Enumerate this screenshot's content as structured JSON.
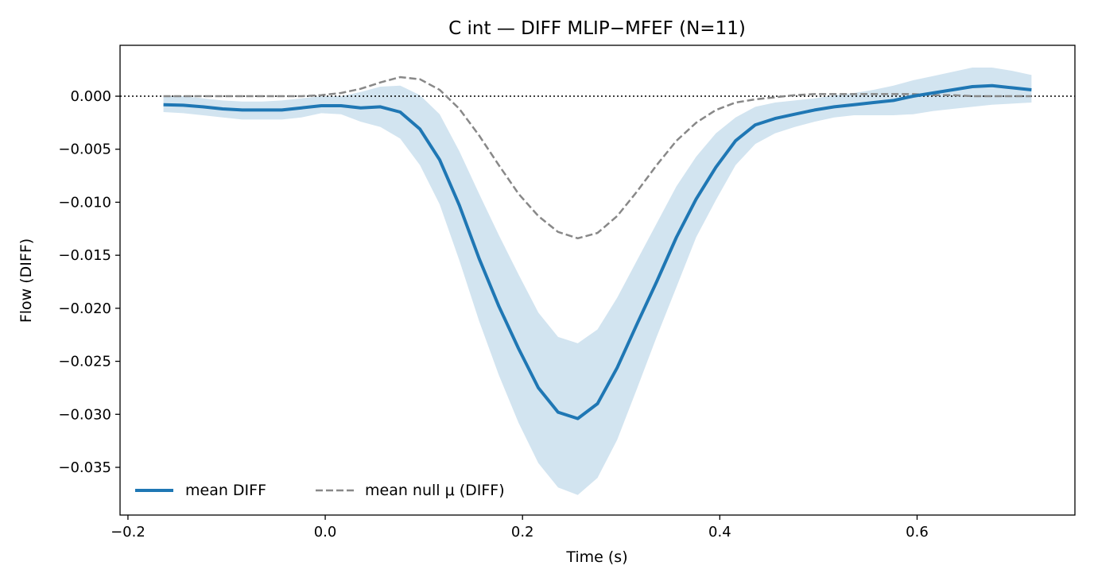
{
  "chart_data": {
    "type": "line",
    "title": "C int — DIFF MLIP−MFEF (N=11)",
    "xlabel": "Time (s)",
    "ylabel": "Flow (DIFF)",
    "xlim": [
      -0.208,
      0.76
    ],
    "ylim": [
      -0.0395,
      0.0048
    ],
    "xticks": [
      -0.2,
      0.0,
      0.2,
      0.4,
      0.6
    ],
    "xtick_labels": [
      "−0.2",
      "0.0",
      "0.2",
      "0.4",
      "0.6"
    ],
    "yticks": [
      0.0,
      -0.005,
      -0.01,
      -0.015,
      -0.02,
      -0.025,
      -0.03,
      -0.035
    ],
    "ytick_labels": [
      "0.000",
      "−0.005",
      "−0.010",
      "−0.015",
      "−0.020",
      "−0.025",
      "−0.030",
      "−0.035"
    ],
    "grid": false,
    "legend_position": "lower-left",
    "reference_line": {
      "y": 0,
      "style": "dotted",
      "color": "#000000"
    },
    "colors": {
      "mean": "#1f77b4",
      "band": "#1f77b4",
      "null": "#888888"
    },
    "x": [
      -0.164,
      -0.144,
      -0.124,
      -0.104,
      -0.084,
      -0.064,
      -0.044,
      -0.024,
      -0.004,
      0.016,
      0.036,
      0.056,
      0.076,
      0.096,
      0.116,
      0.136,
      0.156,
      0.176,
      0.196,
      0.216,
      0.236,
      0.256,
      0.276,
      0.296,
      0.316,
      0.336,
      0.356,
      0.376,
      0.396,
      0.416,
      0.436,
      0.456,
      0.476,
      0.496,
      0.516,
      0.536,
      0.556,
      0.576,
      0.596,
      0.616,
      0.636,
      0.656,
      0.676,
      0.696,
      0.716
    ],
    "series": [
      {
        "name": "mean DIFF",
        "style": "solid",
        "values": [
          -0.0008,
          -0.00085,
          -0.001,
          -0.0012,
          -0.0013,
          -0.0013,
          -0.0013,
          -0.0011,
          -0.0009,
          -0.0009,
          -0.0011,
          -0.001,
          -0.0015,
          -0.0031,
          -0.006,
          -0.0103,
          -0.0153,
          -0.0198,
          -0.0238,
          -0.0275,
          -0.0298,
          -0.0304,
          -0.029,
          -0.0256,
          -0.0215,
          -0.0175,
          -0.0133,
          -0.0097,
          -0.0067,
          -0.0042,
          -0.0027,
          -0.0021,
          -0.0017,
          -0.0013,
          -0.001,
          -0.0008,
          -0.0006,
          -0.0004,
          0.0,
          0.0003,
          0.0006,
          0.0009,
          0.001,
          0.0008,
          0.0006
        ]
      },
      {
        "name": "mean null μ (DIFF)",
        "style": "dashed",
        "values": [
          0.0,
          0.0,
          0.0,
          0.0,
          0.0,
          0.0,
          0.0,
          0.0,
          0.0001,
          0.0003,
          0.0007,
          0.0013,
          0.0018,
          0.0016,
          0.0006,
          -0.0012,
          -0.0037,
          -0.0065,
          -0.0092,
          -0.0113,
          -0.0128,
          -0.0134,
          -0.0129,
          -0.0113,
          -0.009,
          -0.0065,
          -0.0042,
          -0.0025,
          -0.0013,
          -0.0006,
          -0.0003,
          -0.0001,
          0.0001,
          0.0002,
          0.0002,
          0.0002,
          0.0002,
          0.0002,
          0.0002,
          0.0001,
          0.0001,
          0.0,
          0.0,
          0.0,
          0.0
        ]
      }
    ],
    "band": {
      "of": "mean DIFF",
      "upper": [
        0.0,
        0.0,
        -0.0002,
        -0.0004,
        -0.0005,
        -0.0005,
        -0.0004,
        -0.0002,
        0.0,
        0.0,
        0.0004,
        0.0009,
        0.001,
        0.0001,
        -0.0017,
        -0.0052,
        -0.0092,
        -0.0131,
        -0.0168,
        -0.0204,
        -0.0227,
        -0.0233,
        -0.022,
        -0.019,
        -0.0155,
        -0.012,
        -0.0085,
        -0.0057,
        -0.0035,
        -0.002,
        -0.001,
        -0.0006,
        -0.0004,
        -0.0002,
        0.0001,
        0.0003,
        0.0006,
        0.001,
        0.0015,
        0.0019,
        0.0023,
        0.0027,
        0.0027,
        0.0024,
        0.002
      ],
      "lower": [
        -0.0015,
        -0.0016,
        -0.0018,
        -0.002,
        -0.0022,
        -0.0022,
        -0.0022,
        -0.002,
        -0.0016,
        -0.0017,
        -0.0024,
        -0.0029,
        -0.004,
        -0.0065,
        -0.0102,
        -0.0155,
        -0.0212,
        -0.0263,
        -0.0308,
        -0.0346,
        -0.0369,
        -0.0376,
        -0.036,
        -0.0324,
        -0.0276,
        -0.0227,
        -0.018,
        -0.0133,
        -0.0098,
        -0.0065,
        -0.0045,
        -0.0035,
        -0.0029,
        -0.0024,
        -0.002,
        -0.0018,
        -0.0018,
        -0.0018,
        -0.0017,
        -0.0014,
        -0.0012,
        -0.001,
        -0.0008,
        -0.0007,
        -0.0006
      ]
    }
  }
}
